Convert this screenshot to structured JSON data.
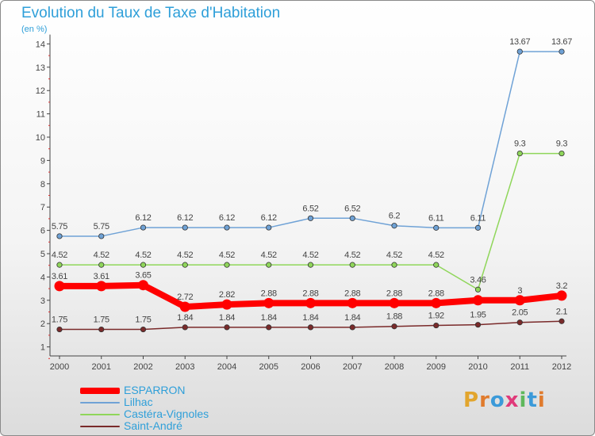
{
  "title": "Evolution du Taux de Taxe d'Habitation",
  "unit": "(en %)",
  "logo": {
    "text": "Proxiti",
    "colors": [
      "#e2a52d",
      "#e07b2d",
      "#3b9ad9",
      "#e03a7a",
      "#5fb85c",
      "#3b9ad9",
      "#e07b2d"
    ]
  },
  "colors": {
    "title": "#2e9fd9",
    "axis": "#444444",
    "label": "#444444"
  },
  "chart_data": {
    "type": "line",
    "title": "Evolution du Taux de Taxe d'Habitation",
    "ylabel": "(en %)",
    "xlabel": "",
    "x": [
      "2000",
      "2001",
      "2002",
      "2003",
      "2004",
      "2005",
      "2006",
      "2007",
      "2008",
      "2009",
      "2010",
      "2011",
      "2012"
    ],
    "ylim": [
      0,
      14
    ],
    "yticks": [
      "1",
      "2",
      "3",
      "4",
      "5",
      "6",
      "7",
      "8",
      "9",
      "10",
      "11",
      "12",
      "13",
      "14"
    ],
    "grid": false,
    "legend_position": "bottom-left",
    "series": [
      {
        "name": "ESPARRON",
        "color": "#ff0000",
        "width": 8,
        "values": [
          3.61,
          3.61,
          3.65,
          2.72,
          2.82,
          2.88,
          2.88,
          2.88,
          2.88,
          2.88,
          3,
          3,
          3.2
        ],
        "labels": [
          "3.61",
          "3.61",
          "3.65",
          "2.72",
          "2.82",
          "2.88",
          "2.88",
          "2.88",
          "2.88",
          "2.88",
          "",
          "3",
          "3.2"
        ]
      },
      {
        "name": "Lilhac",
        "color": "#6fa2d6",
        "width": 1.5,
        "values": [
          5.75,
          5.75,
          6.12,
          6.12,
          6.12,
          6.12,
          6.52,
          6.52,
          6.2,
          6.11,
          6.11,
          13.67,
          13.67
        ],
        "labels": [
          "5.75",
          "5.75",
          "6.12",
          "6.12",
          "6.12",
          "6.12",
          "6.52",
          "6.52",
          "6.2",
          "6.11",
          "6.11",
          "13.67",
          "13.67"
        ]
      },
      {
        "name": "Castéra-Vignoles",
        "color": "#8fd65a",
        "width": 1.5,
        "values": [
          4.52,
          4.52,
          4.52,
          4.52,
          4.52,
          4.52,
          4.52,
          4.52,
          4.52,
          4.52,
          3.46,
          9.3,
          9.3
        ],
        "labels": [
          "4.52",
          "4.52",
          "4.52",
          "4.52",
          "4.52",
          "4.52",
          "4.52",
          "4.52",
          "4.52",
          "4.52",
          "3.46",
          "9.3",
          "9.3"
        ]
      },
      {
        "name": "Saint-André",
        "color": "#7a2a2a",
        "width": 1.5,
        "values": [
          1.75,
          1.75,
          1.75,
          1.84,
          1.84,
          1.84,
          1.84,
          1.84,
          1.88,
          1.92,
          1.95,
          2.05,
          2.1
        ],
        "labels": [
          "1.75",
          "1.75",
          "1.75",
          "1.84",
          "1.84",
          "1.84",
          "1.84",
          "1.84",
          "1.88",
          "1.92",
          "1.95",
          "2.05",
          "2.1"
        ]
      }
    ]
  }
}
